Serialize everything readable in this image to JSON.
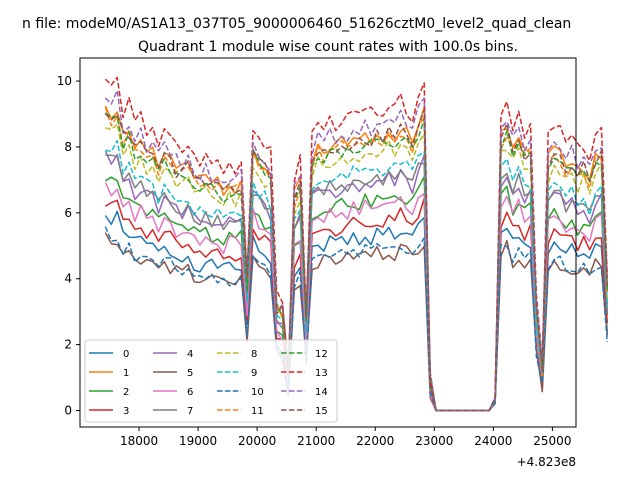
{
  "chart_data": {
    "type": "line",
    "suptitle": "n file: modeM0/AS1A13_037T05_9000006460_51626cztM0_level2_quad_clean",
    "title": "Quadrant 1 module wise count rates with 100.0s bins.",
    "xlabel": "",
    "ylabel": "",
    "x_offset_label": "+4.823e8",
    "xlim": [
      17000,
      25400
    ],
    "ylim": [
      -0.5,
      10.7
    ],
    "x_ticks": [
      18000,
      19000,
      20000,
      21000,
      22000,
      23000,
      24000,
      25000
    ],
    "x_tick_labels": [
      "18000",
      "19000",
      "20000",
      "21000",
      "22000",
      "23000",
      "24000",
      "25000"
    ],
    "y_ticks": [
      0,
      2,
      4,
      6,
      8,
      10
    ],
    "y_tick_labels": [
      "0",
      "2",
      "4",
      "6",
      "8",
      "10"
    ],
    "grid": false,
    "legend": {
      "placement": "lower-left",
      "columns": 4
    },
    "x_start": 17430,
    "x_step": 100,
    "profile": [
      1.0,
      0.97,
      0.99,
      0.9,
      0.92,
      0.86,
      0.88,
      0.84,
      0.86,
      0.8,
      0.83,
      0.82,
      0.79,
      0.78,
      0.8,
      0.76,
      0.75,
      0.76,
      0.74,
      0.75,
      0.72,
      0.74,
      0.73,
      0.75,
      0.42,
      0.86,
      0.82,
      0.8,
      0.77,
      0.34,
      0.32,
      0.12,
      0.7,
      0.75,
      0.3,
      0.83,
      0.86,
      0.85,
      0.87,
      0.86,
      0.88,
      0.87,
      0.89,
      0.88,
      0.9,
      0.89,
      0.91,
      0.9,
      0.92,
      0.9,
      0.93,
      0.91,
      0.88,
      0.94,
      0.98,
      0.1,
      0.0,
      0.0,
      0.0,
      0.0,
      0.0,
      0.0,
      0.0,
      0.0,
      0.0,
      0.0,
      0.04,
      0.9,
      0.93,
      0.86,
      0.9,
      0.84,
      0.86,
      0.34,
      0.14,
      0.82,
      0.86,
      0.84,
      0.8,
      0.82,
      0.78,
      0.8,
      0.76,
      0.83,
      0.84,
      0.4
    ],
    "series": [
      {
        "name": "0",
        "color": "#1f77b4",
        "style": "solid",
        "level": 5.9,
        "seed": 1
      },
      {
        "name": "1",
        "color": "#ff7f0e",
        "style": "solid",
        "level": 9.3,
        "seed": 2
      },
      {
        "name": "2",
        "color": "#2ca02c",
        "style": "solid",
        "level": 7.1,
        "seed": 3
      },
      {
        "name": "3",
        "color": "#d62728",
        "style": "solid",
        "level": 6.4,
        "seed": 4
      },
      {
        "name": "4",
        "color": "#9467bd",
        "style": "solid",
        "level": 7.7,
        "seed": 5
      },
      {
        "name": "5",
        "color": "#8c564b",
        "style": "solid",
        "level": 5.3,
        "seed": 6
      },
      {
        "name": "6",
        "color": "#e377c2",
        "style": "solid",
        "level": 6.9,
        "seed": 7
      },
      {
        "name": "7",
        "color": "#7f7f7f",
        "style": "solid",
        "level": 7.8,
        "seed": 8
      },
      {
        "name": "8",
        "color": "#bcbd22",
        "style": "dashed",
        "level": 8.7,
        "seed": 9
      },
      {
        "name": "9",
        "color": "#17becf",
        "style": "dashed",
        "level": 8.1,
        "seed": 10
      },
      {
        "name": "10",
        "color": "#1f77b4",
        "style": "dashed",
        "level": 5.4,
        "seed": 11
      },
      {
        "name": "11",
        "color": "#ff7f0e",
        "style": "dashed",
        "level": 9.1,
        "seed": 12
      },
      {
        "name": "12",
        "color": "#2ca02c",
        "style": "dashed",
        "level": 9.0,
        "seed": 13
      },
      {
        "name": "13",
        "color": "#d62728",
        "style": "dashed",
        "level": 10.1,
        "seed": 14
      },
      {
        "name": "14",
        "color": "#9467bd",
        "style": "dashed",
        "level": 9.6,
        "seed": 15
      },
      {
        "name": "15",
        "color": "#8c564b",
        "style": "dashed",
        "level": 9.2,
        "seed": 16
      }
    ]
  }
}
